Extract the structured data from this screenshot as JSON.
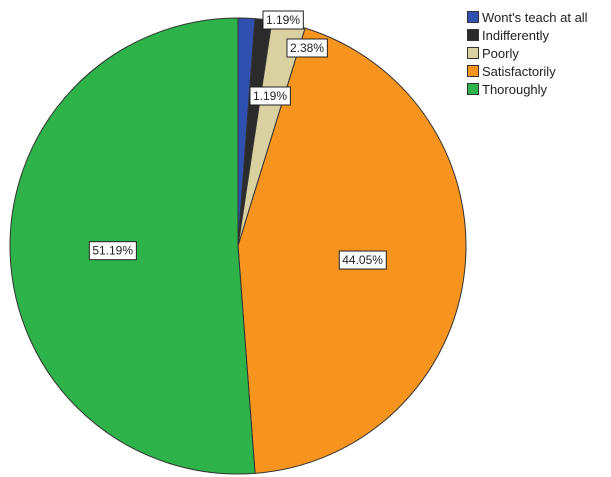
{
  "chart_data": {
    "type": "pie",
    "categories": [
      "Wont's teach at all",
      "Indifferently",
      "Poorly",
      "Satisfactorily",
      "Thoroughly"
    ],
    "values": [
      1.19,
      1.19,
      2.38,
      44.05,
      51.19
    ],
    "labels": [
      "1.19%",
      "1.19%",
      "2.38%",
      "44.05%",
      "51.19%"
    ],
    "colors": [
      "#3050b0",
      "#2b2b2b",
      "#d9d2a0",
      "#f7941d",
      "#2eb34a"
    ],
    "legend_position": "top-right",
    "start_angle_deg": 0,
    "direction": "clockwise"
  }
}
